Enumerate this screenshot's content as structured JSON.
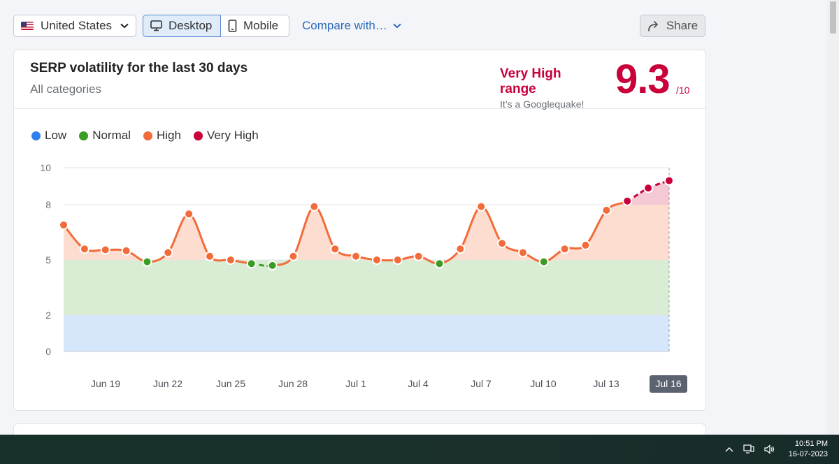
{
  "toolbar": {
    "country_label": "United States",
    "desktop_label": "Desktop",
    "mobile_label": "Mobile",
    "compare_label": "Compare with…",
    "share_label": "Share"
  },
  "card": {
    "title": "SERP volatility for the last 30 days",
    "subtitle": "All categories",
    "range_name": "Very High range",
    "range_desc": "It’s a Googlequake!",
    "score": "9.3",
    "score_max": "/10"
  },
  "colors": {
    "low": "#2f80ed",
    "normal": "#3a9d23",
    "high": "#f26b3a",
    "very_high": "#c9003a"
  },
  "chart_data": {
    "type": "line",
    "title": "SERP volatility for the last 30 days",
    "legend": [
      {
        "name": "Low",
        "range": [
          0,
          2
        ]
      },
      {
        "name": "Normal",
        "range": [
          2,
          5
        ]
      },
      {
        "name": "High",
        "range": [
          5,
          8
        ]
      },
      {
        "name": "Very High",
        "range": [
          8,
          10
        ]
      }
    ],
    "y_ticks": [
      0,
      2,
      5,
      8,
      10
    ],
    "ylim": [
      0,
      10
    ],
    "x_ticks": [
      "Jun 19",
      "Jun 22",
      "Jun 25",
      "Jun 28",
      "Jul 1",
      "Jul 4",
      "Jul 7",
      "Jul 10",
      "Jul 13",
      "Jul 16"
    ],
    "selected_x_tick": "Jul 16",
    "start_date": "Jun 17",
    "values": [
      6.9,
      5.6,
      5.55,
      5.5,
      4.9,
      5.4,
      7.5,
      5.2,
      5.0,
      4.8,
      4.7,
      5.2,
      7.9,
      5.6,
      5.2,
      5.0,
      5.0,
      5.2,
      4.8,
      5.6,
      7.9,
      5.9,
      5.4,
      4.9,
      5.6,
      5.8,
      7.7,
      8.2,
      8.9,
      9.3
    ]
  },
  "taskbar": {
    "time": "10:51 PM",
    "date": "16-07-2023"
  }
}
